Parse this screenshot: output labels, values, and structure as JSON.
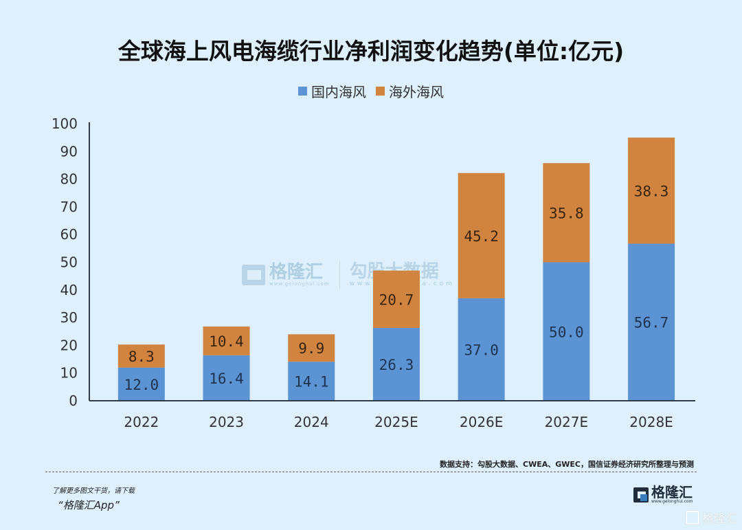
{
  "chart_data": {
    "type": "bar",
    "stacked": true,
    "title": "全球海上风电海缆行业净利润变化趋势(单位:亿元)",
    "xlabel": "",
    "ylabel": "",
    "categories": [
      "2022",
      "2023",
      "2024",
      "2025E",
      "2026E",
      "2027E",
      "2028E"
    ],
    "series": [
      {
        "name": "国内海风",
        "color": "#5b93d3",
        "values": [
          12.0,
          16.4,
          14.1,
          26.3,
          37.0,
          50.0,
          56.7
        ],
        "labels": [
          "12.0",
          "16.4",
          "14.1",
          "26.3",
          "37.0",
          "50.0",
          "56.7"
        ]
      },
      {
        "name": "海外海风",
        "color": "#d0843f",
        "values": [
          8.3,
          10.4,
          9.9,
          20.7,
          45.2,
          35.8,
          38.3
        ],
        "labels": [
          "8.3",
          "10.4",
          "9.9",
          "20.7",
          "45.2",
          "35.8",
          "38.3"
        ]
      }
    ],
    "ylim": [
      0,
      100
    ],
    "yticks": [
      0,
      10,
      20,
      30,
      40,
      50,
      60,
      70,
      80,
      90,
      100
    ],
    "grid": false,
    "legend": "top-center"
  },
  "watermark": {
    "brand": "格隆汇",
    "brand_url": "www.gelonghui.com",
    "partner": "勾股大数据",
    "partner_url": "www.gugudata.com"
  },
  "source": "数据支持：勾股大数据、CWEA、GWEC，国信证券经济研究所整理与预测",
  "promo": {
    "line1": "了解更多图文干货，请下载",
    "line2": "“格隆汇App”"
  },
  "brand_logo": {
    "name": "格隆汇",
    "url": "www.gelonghui.com"
  },
  "corner_mark": "格隆汇"
}
